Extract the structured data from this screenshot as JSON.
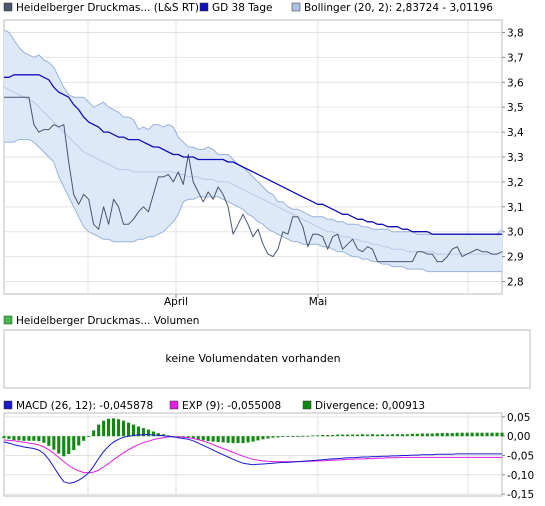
{
  "legend": {
    "price_label": "Heidelberger Druckmas... (L&S RT)",
    "sma_label": "GD 38 Tage",
    "bollinger_label": "Bollinger (20, 2): 2,83724 - 3,01196"
  },
  "volume_panel": {
    "legend_label": "Heidelberger Druckmas... Volumen",
    "message": "keine Volumendaten vorhanden"
  },
  "macd_legend": {
    "macd_label": "MACD (26, 12): -0,045878",
    "exp_label": "EXP (9): -0,055008",
    "divergence_label": "Divergence: 0,00913"
  },
  "colors": {
    "price": "#4a5570",
    "sma": "#1010b8",
    "band_fill": "#dde8f8",
    "band_line": "#99b2d6",
    "band_mid": "#b9cbe6",
    "macd": "#1a1acc",
    "exp": "#e020e0",
    "divergence": "#118811",
    "volume_swatch": "#44bb44"
  },
  "chart_data": [
    {
      "type": "line",
      "ylim": [
        2.75,
        3.85
      ],
      "y_ticks": [
        "3,8",
        "3,7",
        "3,6",
        "3,5",
        "3,4",
        "3,3",
        "3,2",
        "3,1",
        "3,0",
        "2,9",
        "2,8"
      ],
      "x_ticks": [
        "April",
        "Mai"
      ],
      "grid": true,
      "x": [
        0,
        2,
        4,
        6,
        8,
        10,
        12,
        14,
        16,
        18,
        20,
        22,
        24,
        26,
        28,
        30,
        32,
        34,
        36,
        38,
        40,
        42,
        44,
        46,
        48,
        50,
        52,
        54,
        56,
        58,
        60,
        62,
        64,
        66,
        68,
        70,
        72,
        74,
        76,
        78,
        80,
        82,
        84,
        86,
        88,
        90,
        92,
        94,
        96,
        98,
        100,
        102,
        104,
        106,
        108,
        110,
        112,
        114,
        116,
        118,
        120,
        122,
        124,
        126,
        128,
        130,
        132,
        134,
        136,
        138,
        140,
        142,
        144,
        146,
        148,
        150,
        152,
        154,
        156,
        158,
        160,
        162,
        164,
        166,
        168,
        170,
        172,
        174,
        176,
        178,
        180,
        182,
        184,
        186,
        188,
        190,
        192,
        194,
        196,
        198,
        200
      ],
      "series": [
        {
          "name": "Heidelberger Druckmas... (L&S RT)",
          "values": [
            3.54,
            3.54,
            3.54,
            3.54,
            3.54,
            3.54,
            3.43,
            3.4,
            3.41,
            3.41,
            3.43,
            3.42,
            3.43,
            3.28,
            3.15,
            3.11,
            3.15,
            3.13,
            3.03,
            3.01,
            3.1,
            3.03,
            3.13,
            3.1,
            3.03,
            3.03,
            3.05,
            3.08,
            3.1,
            3.08,
            3.15,
            3.22,
            3.22,
            3.23,
            3.2,
            3.24,
            3.19,
            3.31,
            3.2,
            3.16,
            3.12,
            3.16,
            3.13,
            3.18,
            3.15,
            3.1,
            2.99,
            3.03,
            3.07,
            3.03,
            2.98,
            3.01,
            2.95,
            2.91,
            2.9,
            2.93,
            3.0,
            2.99,
            3.06,
            3.06,
            3.02,
            2.94,
            2.99,
            2.99,
            2.98,
            2.93,
            2.98,
            2.99,
            2.93,
            2.95,
            2.97,
            2.93,
            2.92,
            2.94,
            2.93,
            2.88,
            2.88,
            2.88,
            2.88,
            2.88,
            2.88,
            2.88,
            2.88,
            2.92,
            2.92,
            2.91,
            2.91,
            2.88,
            2.88,
            2.9,
            2.93,
            2.94,
            2.9,
            2.91,
            2.92,
            2.93,
            2.92,
            2.92,
            2.91,
            2.91,
            2.92
          ]
        },
        {
          "name": "GD 38 Tage",
          "values": [
            3.62,
            3.62,
            3.63,
            3.63,
            3.63,
            3.63,
            3.63,
            3.63,
            3.62,
            3.61,
            3.58,
            3.56,
            3.55,
            3.54,
            3.51,
            3.49,
            3.46,
            3.44,
            3.43,
            3.42,
            3.4,
            3.4,
            3.39,
            3.38,
            3.38,
            3.37,
            3.37,
            3.37,
            3.36,
            3.35,
            3.34,
            3.34,
            3.33,
            3.32,
            3.31,
            3.31,
            3.3,
            3.3,
            3.3,
            3.29,
            3.29,
            3.29,
            3.29,
            3.29,
            3.29,
            3.28,
            3.28,
            3.27,
            3.26,
            3.25,
            3.24,
            3.23,
            3.22,
            3.21,
            3.2,
            3.19,
            3.18,
            3.17,
            3.16,
            3.15,
            3.14,
            3.13,
            3.12,
            3.11,
            3.11,
            3.1,
            3.09,
            3.08,
            3.07,
            3.07,
            3.06,
            3.05,
            3.05,
            3.04,
            3.04,
            3.03,
            3.03,
            3.02,
            3.02,
            3.02,
            3.01,
            3.01,
            3.0,
            3.0,
            3.0,
            3.0,
            2.99,
            2.99,
            2.99,
            2.99,
            2.99,
            2.99,
            2.99,
            2.99,
            2.99,
            2.99,
            2.99,
            2.99,
            2.99,
            2.99,
            2.99
          ]
        },
        {
          "name": "Bollinger Upper",
          "values": [
            3.81,
            3.8,
            3.77,
            3.74,
            3.72,
            3.71,
            3.7,
            3.71,
            3.69,
            3.68,
            3.66,
            3.62,
            3.58,
            3.55,
            3.54,
            3.54,
            3.54,
            3.52,
            3.5,
            3.51,
            3.52,
            3.5,
            3.49,
            3.48,
            3.46,
            3.46,
            3.45,
            3.41,
            3.42,
            3.41,
            3.43,
            3.43,
            3.42,
            3.43,
            3.42,
            3.38,
            3.36,
            3.34,
            3.34,
            3.33,
            3.33,
            3.34,
            3.33,
            3.31,
            3.31,
            3.31,
            3.29,
            3.27,
            3.26,
            3.24,
            3.22,
            3.2,
            3.18,
            3.16,
            3.15,
            3.12,
            3.12,
            3.1,
            3.09,
            3.09,
            3.08,
            3.07,
            3.06,
            3.06,
            3.06,
            3.05,
            3.05,
            3.04,
            3.04,
            3.03,
            3.03,
            3.03,
            3.02,
            3.02,
            3.01,
            3.01,
            3.01,
            3.01,
            3.0,
            3.0,
            3.0,
            3.0,
            3.0,
            2.99,
            2.99,
            2.99,
            2.99,
            2.99,
            2.99,
            2.99,
            2.99,
            2.99,
            2.99,
            2.99,
            2.99,
            2.99,
            2.99,
            2.99,
            2.99,
            2.99,
            3.01
          ]
        },
        {
          "name": "Bollinger Middle",
          "values": [
            3.58,
            3.57,
            3.56,
            3.55,
            3.54,
            3.53,
            3.52,
            3.5,
            3.48,
            3.46,
            3.44,
            3.42,
            3.4,
            3.38,
            3.36,
            3.34,
            3.32,
            3.31,
            3.3,
            3.29,
            3.28,
            3.27,
            3.26,
            3.25,
            3.25,
            3.25,
            3.24,
            3.24,
            3.24,
            3.24,
            3.24,
            3.24,
            3.24,
            3.24,
            3.24,
            3.23,
            3.23,
            3.22,
            3.22,
            3.22,
            3.21,
            3.21,
            3.21,
            3.2,
            3.2,
            3.2,
            3.19,
            3.18,
            3.17,
            3.16,
            3.15,
            3.14,
            3.13,
            3.12,
            3.11,
            3.1,
            3.09,
            3.08,
            3.07,
            3.06,
            3.05,
            3.04,
            3.03,
            3.02,
            3.01,
            3.0,
            3.0,
            2.99,
            2.98,
            2.98,
            2.97,
            2.97,
            2.96,
            2.96,
            2.95,
            2.95,
            2.94,
            2.94,
            2.93,
            2.93,
            2.93,
            2.92,
            2.92,
            2.92,
            2.92,
            2.92,
            2.92,
            2.91,
            2.91,
            2.91,
            2.91,
            2.91,
            2.91,
            2.91,
            2.91,
            2.91,
            2.91,
            2.91,
            2.91,
            2.91,
            2.92
          ]
        },
        {
          "name": "Bollinger Lower",
          "values": [
            3.36,
            3.36,
            3.36,
            3.37,
            3.37,
            3.37,
            3.36,
            3.34,
            3.32,
            3.3,
            3.28,
            3.22,
            3.18,
            3.14,
            3.1,
            3.06,
            3.02,
            3.0,
            2.99,
            2.98,
            2.97,
            2.97,
            2.96,
            2.96,
            2.96,
            2.96,
            2.96,
            2.97,
            2.97,
            2.98,
            2.98,
            2.99,
            3.0,
            3.02,
            3.04,
            3.07,
            3.12,
            3.13,
            3.13,
            3.14,
            3.14,
            3.14,
            3.14,
            3.14,
            3.13,
            3.12,
            3.11,
            3.1,
            3.09,
            3.07,
            3.06,
            3.04,
            3.03,
            3.01,
            3.0,
            2.99,
            2.98,
            2.97,
            2.96,
            2.96,
            2.95,
            2.95,
            2.95,
            2.95,
            2.94,
            2.94,
            2.93,
            2.92,
            2.92,
            2.91,
            2.9,
            2.9,
            2.89,
            2.89,
            2.88,
            2.88,
            2.87,
            2.87,
            2.86,
            2.86,
            2.86,
            2.85,
            2.85,
            2.85,
            2.85,
            2.84,
            2.84,
            2.84,
            2.84,
            2.84,
            2.84,
            2.84,
            2.84,
            2.84,
            2.84,
            2.84,
            2.84,
            2.84,
            2.84,
            2.84,
            2.84
          ]
        }
      ]
    },
    {
      "type": "line",
      "ylim": [
        -0.155,
        0.06
      ],
      "y_ticks": [
        "0,05",
        "0,00",
        "-0,05",
        "-0,10",
        "-0,15"
      ],
      "grid": true,
      "x": [
        0,
        2,
        4,
        6,
        8,
        10,
        12,
        14,
        16,
        18,
        20,
        22,
        24,
        26,
        28,
        30,
        32,
        34,
        36,
        38,
        40,
        42,
        44,
        46,
        48,
        50,
        52,
        54,
        56,
        58,
        60,
        62,
        64,
        66,
        68,
        70,
        72,
        74,
        76,
        78,
        80,
        82,
        84,
        86,
        88,
        90,
        92,
        94,
        96,
        98,
        100,
        102,
        104,
        106,
        108,
        110,
        112,
        114,
        116,
        118,
        120,
        122,
        124,
        126,
        128,
        130,
        132,
        134,
        136,
        138,
        140,
        142,
        144,
        146,
        148,
        150,
        152,
        154,
        156,
        158,
        160,
        162,
        164,
        166,
        168,
        170,
        172,
        174,
        176,
        178,
        180,
        182,
        184,
        186,
        188,
        190,
        192,
        194,
        196,
        198,
        200
      ],
      "series": [
        {
          "name": "MACD (26, 12)",
          "values": [
            -0.015,
            -0.018,
            -0.022,
            -0.025,
            -0.028,
            -0.03,
            -0.032,
            -0.036,
            -0.045,
            -0.06,
            -0.08,
            -0.1,
            -0.118,
            -0.122,
            -0.12,
            -0.114,
            -0.106,
            -0.095,
            -0.078,
            -0.058,
            -0.04,
            -0.026,
            -0.015,
            -0.008,
            -0.003,
            0.0,
            0.002,
            0.003,
            0.004,
            0.004,
            0.003,
            0.002,
            0.001,
            0.0,
            -0.002,
            -0.004,
            -0.006,
            -0.008,
            -0.012,
            -0.018,
            -0.024,
            -0.03,
            -0.036,
            -0.042,
            -0.048,
            -0.054,
            -0.06,
            -0.065,
            -0.07,
            -0.072,
            -0.074,
            -0.073,
            -0.072,
            -0.071,
            -0.07,
            -0.069,
            -0.068,
            -0.068,
            -0.067,
            -0.066,
            -0.065,
            -0.064,
            -0.063,
            -0.062,
            -0.061,
            -0.06,
            -0.059,
            -0.058,
            -0.057,
            -0.056,
            -0.056,
            -0.055,
            -0.054,
            -0.054,
            -0.053,
            -0.053,
            -0.052,
            -0.052,
            -0.051,
            -0.051,
            -0.05,
            -0.05,
            -0.049,
            -0.049,
            -0.048,
            -0.048,
            -0.048,
            -0.047,
            -0.047,
            -0.047,
            -0.047,
            -0.046,
            -0.046,
            -0.046,
            -0.046,
            -0.046,
            -0.046,
            -0.046,
            -0.046,
            -0.046,
            -0.046
          ]
        },
        {
          "name": "EXP (9)",
          "values": [
            -0.01,
            -0.011,
            -0.012,
            -0.014,
            -0.016,
            -0.018,
            -0.02,
            -0.023,
            -0.028,
            -0.035,
            -0.045,
            -0.055,
            -0.066,
            -0.076,
            -0.084,
            -0.09,
            -0.094,
            -0.095,
            -0.093,
            -0.088,
            -0.08,
            -0.071,
            -0.061,
            -0.052,
            -0.043,
            -0.035,
            -0.028,
            -0.022,
            -0.017,
            -0.013,
            -0.009,
            -0.006,
            -0.004,
            -0.002,
            -0.002,
            -0.002,
            -0.003,
            -0.004,
            -0.006,
            -0.009,
            -0.013,
            -0.017,
            -0.022,
            -0.027,
            -0.032,
            -0.037,
            -0.042,
            -0.047,
            -0.052,
            -0.056,
            -0.06,
            -0.062,
            -0.064,
            -0.065,
            -0.066,
            -0.066,
            -0.066,
            -0.066,
            -0.066,
            -0.066,
            -0.066,
            -0.065,
            -0.065,
            -0.064,
            -0.064,
            -0.063,
            -0.062,
            -0.062,
            -0.061,
            -0.06,
            -0.06,
            -0.059,
            -0.059,
            -0.058,
            -0.058,
            -0.057,
            -0.057,
            -0.056,
            -0.056,
            -0.056,
            -0.055,
            -0.055,
            -0.055,
            -0.055,
            -0.055,
            -0.055,
            -0.055,
            -0.055,
            -0.055,
            -0.055,
            -0.055,
            -0.055,
            -0.055,
            -0.055,
            -0.055,
            -0.055,
            -0.055,
            -0.055,
            -0.055,
            -0.055,
            -0.055
          ]
        },
        {
          "name": "Divergence",
          "values": [
            -0.005,
            -0.007,
            -0.01,
            -0.011,
            -0.012,
            -0.012,
            -0.012,
            -0.013,
            -0.017,
            -0.025,
            -0.035,
            -0.045,
            -0.052,
            -0.046,
            -0.036,
            -0.024,
            -0.012,
            0.0,
            0.015,
            0.03,
            0.04,
            0.045,
            0.046,
            0.044,
            0.04,
            0.035,
            0.03,
            0.025,
            0.021,
            0.017,
            0.012,
            0.008,
            0.005,
            0.002,
            0.0,
            -0.002,
            -0.003,
            -0.004,
            -0.006,
            -0.009,
            -0.011,
            -0.013,
            -0.014,
            -0.015,
            -0.016,
            -0.017,
            -0.018,
            -0.018,
            -0.018,
            -0.016,
            -0.014,
            -0.011,
            -0.008,
            -0.006,
            -0.004,
            -0.003,
            -0.002,
            -0.002,
            -0.001,
            0.0,
            0.001,
            0.001,
            0.002,
            0.002,
            0.003,
            0.003,
            0.003,
            0.004,
            0.004,
            0.004,
            0.004,
            0.004,
            0.005,
            0.004,
            0.005,
            0.004,
            0.005,
            0.004,
            0.005,
            0.005,
            0.005,
            0.005,
            0.006,
            0.006,
            0.007,
            0.007,
            0.007,
            0.008,
            0.008,
            0.008,
            0.008,
            0.009,
            0.009,
            0.009,
            0.009,
            0.009,
            0.009,
            0.009,
            0.009,
            0.009,
            0.009
          ]
        }
      ]
    }
  ]
}
